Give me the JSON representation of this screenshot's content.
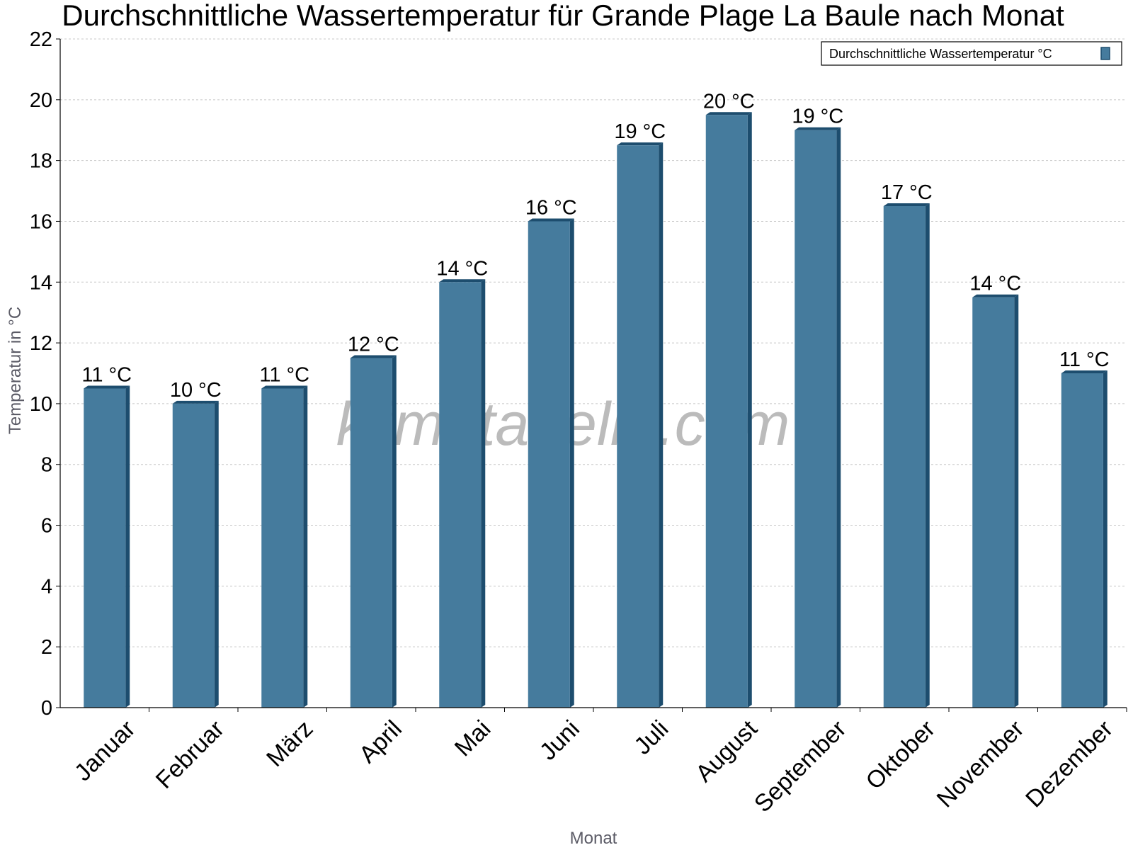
{
  "chart_data": {
    "type": "bar",
    "title": "Durchschnittliche Wassertemperatur für Grande Plage La Baule nach Monat",
    "xlabel": "Monat",
    "ylabel": "Temperatur in °C",
    "categories": [
      "Januar",
      "Februar",
      "März",
      "April",
      "Mai",
      "Juni",
      "Juli",
      "August",
      "September",
      "Oktober",
      "November",
      "Dezember"
    ],
    "series": [
      {
        "name": "Durchschnittliche Wassertemperatur °C",
        "values": [
          10.5,
          10.0,
          10.5,
          11.5,
          14.0,
          16.0,
          18.5,
          19.5,
          19.0,
          16.5,
          13.5,
          11.0
        ],
        "labels": [
          "11 °C",
          "10 °C",
          "11 °C",
          "12 °C",
          "14 °C",
          "16 °C",
          "19 °C",
          "20 °C",
          "19 °C",
          "17 °C",
          "14 °C",
          "11 °C"
        ]
      }
    ],
    "ylim": [
      0,
      22
    ],
    "yticks": [
      "0",
      "2",
      "4",
      "6",
      "8",
      "10",
      "12",
      "14",
      "16",
      "18",
      "20",
      "22"
    ],
    "grid": true,
    "legend_position": "top-right",
    "colors": {
      "bar": "#457b9d",
      "bar_side": "#1d4d6e",
      "grid": "#c8c8c8"
    },
    "watermark": "klimatabelle.com"
  }
}
